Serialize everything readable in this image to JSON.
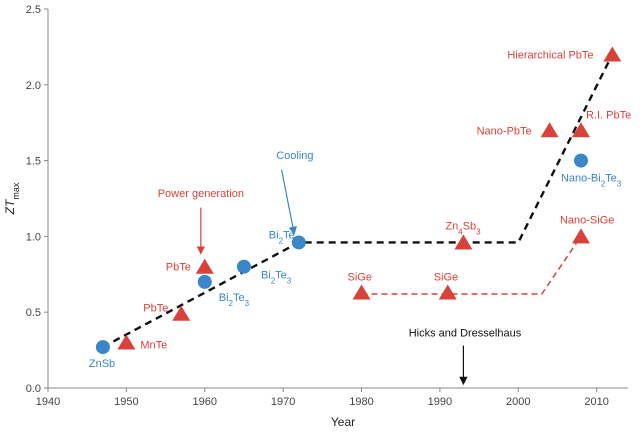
{
  "chart_data": {
    "type": "scatter",
    "title": "",
    "xlabel": "Year",
    "ylabel": "ZT",
    "ylabel_sub": "max",
    "xlim": [
      1940,
      2014
    ],
    "ylim": [
      0.0,
      2.5
    ],
    "xticks": [
      1940,
      1950,
      1960,
      1970,
      1980,
      1990,
      2000,
      2010
    ],
    "yticks": [
      0.0,
      0.5,
      1.0,
      1.5,
      2.0,
      2.5
    ],
    "ytick_labels": [
      "0.0",
      "0.5",
      "1.0",
      "1.5",
      "2.0",
      "2.5"
    ],
    "grid": false,
    "colors": {
      "cooling": "#3a86c8",
      "power": "#d8423a",
      "trend_black": "#111111",
      "trend_red": "#d8423a",
      "axis": "#888888"
    },
    "series": [
      {
        "name": "Cooling",
        "marker": "circle",
        "points": [
          {
            "label": "ZnSb",
            "x": 1947,
            "y": 0.27
          },
          {
            "label": "Bi2Te3",
            "x": 1960,
            "y": 0.7
          },
          {
            "label": "Bi2Te3",
            "x": 1965,
            "y": 0.8
          },
          {
            "label": "Bi2Te3",
            "x": 1972,
            "y": 0.96
          },
          {
            "label": "Nano-Bi2Te3",
            "x": 2008,
            "y": 1.5
          }
        ]
      },
      {
        "name": "Power generation",
        "marker": "triangle",
        "points": [
          {
            "label": "MnTe",
            "x": 1950,
            "y": 0.3
          },
          {
            "label": "PbTe",
            "x": 1957,
            "y": 0.49
          },
          {
            "label": "PbTe",
            "x": 1960,
            "y": 0.8
          },
          {
            "label": "SiGe",
            "x": 1980,
            "y": 0.63
          },
          {
            "label": "SiGe",
            "x": 1991,
            "y": 0.63
          },
          {
            "label": "Zn4Sb3",
            "x": 1993,
            "y": 0.96
          },
          {
            "label": "Nano-SiGe",
            "x": 2008,
            "y": 1.0
          },
          {
            "label": "Nano-PbTe",
            "x": 2004,
            "y": 1.7
          },
          {
            "label": "R.I. PbTe",
            "x": 2008,
            "y": 1.7
          },
          {
            "label": "Hierarchical PbTe",
            "x": 2012,
            "y": 2.2
          }
        ]
      }
    ],
    "trend_lines": [
      {
        "name": "black-trend",
        "points": [
          [
            1947,
            0.27
          ],
          [
            1972,
            0.96
          ],
          [
            2000,
            0.96
          ],
          [
            2012,
            2.2
          ]
        ]
      },
      {
        "name": "red-trend",
        "points": [
          [
            1980,
            0.62
          ],
          [
            2003,
            0.62
          ],
          [
            2008,
            1.0
          ]
        ]
      }
    ],
    "annotations": [
      {
        "name": "cooling-annotation",
        "text": "Cooling",
        "points_to": [
          1972,
          0.96
        ]
      },
      {
        "name": "power-generation-annotation",
        "text": "Power generation",
        "points_to": [
          1960,
          0.8
        ]
      },
      {
        "name": "hicks-dresselhaus-annotation",
        "text": "Hicks and Dresselhaus",
        "points_to": [
          1993,
          0.0
        ]
      }
    ]
  }
}
